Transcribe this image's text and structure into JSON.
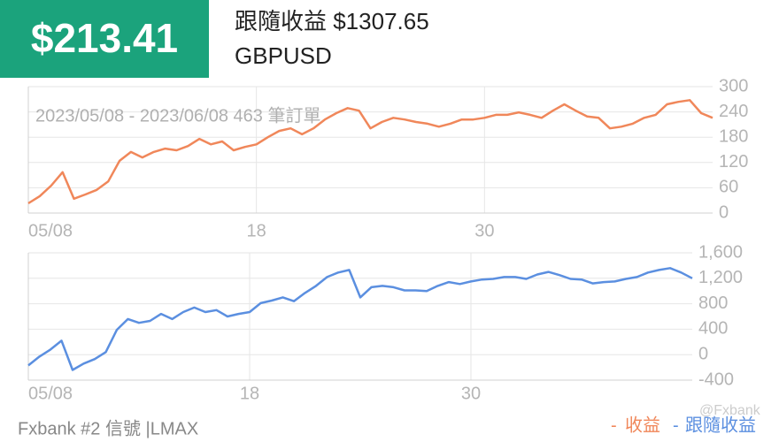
{
  "header": {
    "balance": "$213.41",
    "title": "跟隨收益 $1307.65",
    "symbol": "GBPUSD"
  },
  "footer": {
    "source": "Fxbank #2 信號 |LMAX",
    "watermark": "@Fxbank"
  },
  "chart_data": [
    {
      "type": "line",
      "subtitle": "2023/05/08 - 2023/06/08 463 筆訂單",
      "categories": [
        "05/08",
        null,
        null,
        null,
        null,
        null,
        null,
        null,
        null,
        null,
        null,
        null,
        null,
        null,
        null,
        null,
        null,
        null,
        null,
        null,
        "18",
        null,
        null,
        null,
        null,
        null,
        null,
        null,
        null,
        null,
        null,
        null,
        null,
        null,
        null,
        null,
        null,
        null,
        null,
        null,
        "30",
        null,
        null,
        null,
        null,
        null,
        null,
        null,
        null,
        null,
        null,
        null,
        null,
        null,
        null,
        null,
        null,
        null,
        null,
        null,
        null
      ],
      "series": [
        {
          "name": "收益",
          "color": "#f0875a",
          "values": [
            23,
            40,
            65,
            97,
            34,
            44,
            55,
            75,
            124,
            145,
            132,
            145,
            153,
            149,
            159,
            176,
            163,
            170,
            149,
            157,
            163,
            180,
            195,
            201,
            187,
            201,
            222,
            237,
            249,
            243,
            201,
            216,
            226,
            222,
            216,
            212,
            205,
            212,
            222,
            222,
            226,
            233,
            233,
            239,
            233,
            226,
            243,
            258,
            243,
            229,
            226,
            201,
            205,
            212,
            226,
            233,
            258,
            264,
            268,
            237,
            226
          ]
        }
      ],
      "ylim": [
        0,
        300
      ],
      "yticks": [
        0,
        60,
        120,
        180,
        240,
        300
      ],
      "grid": true
    },
    {
      "type": "line",
      "categories": [
        "05/08",
        null,
        null,
        null,
        null,
        null,
        null,
        null,
        null,
        null,
        null,
        null,
        null,
        null,
        null,
        null,
        null,
        null,
        null,
        null,
        "18",
        null,
        null,
        null,
        null,
        null,
        null,
        null,
        null,
        null,
        null,
        null,
        null,
        null,
        null,
        null,
        null,
        null,
        null,
        null,
        "30",
        null,
        null,
        null,
        null,
        null,
        null,
        null,
        null,
        null,
        null,
        null,
        null,
        null,
        null,
        null,
        null,
        null,
        null,
        null,
        null
      ],
      "series": [
        {
          "name": "跟隨收益",
          "color": "#5b8fe0",
          "values": [
            -170,
            -30,
            80,
            220,
            -240,
            -140,
            -70,
            40,
            390,
            560,
            500,
            530,
            640,
            560,
            670,
            740,
            670,
            700,
            600,
            640,
            670,
            810,
            850,
            900,
            840,
            970,
            1080,
            1220,
            1290,
            1330,
            900,
            1060,
            1080,
            1060,
            1010,
            1010,
            1000,
            1080,
            1140,
            1110,
            1150,
            1180,
            1190,
            1220,
            1220,
            1190,
            1260,
            1300,
            1250,
            1190,
            1180,
            1120,
            1140,
            1150,
            1190,
            1220,
            1290,
            1330,
            1360,
            1290,
            1200
          ]
        }
      ],
      "ylim": [
        -400,
        1600
      ],
      "yticks": [
        -400,
        0,
        400,
        800,
        {
          "value": 1200,
          "label": "1,200"
        },
        {
          "value": 1600,
          "label": "1,600"
        }
      ],
      "grid": true
    }
  ]
}
